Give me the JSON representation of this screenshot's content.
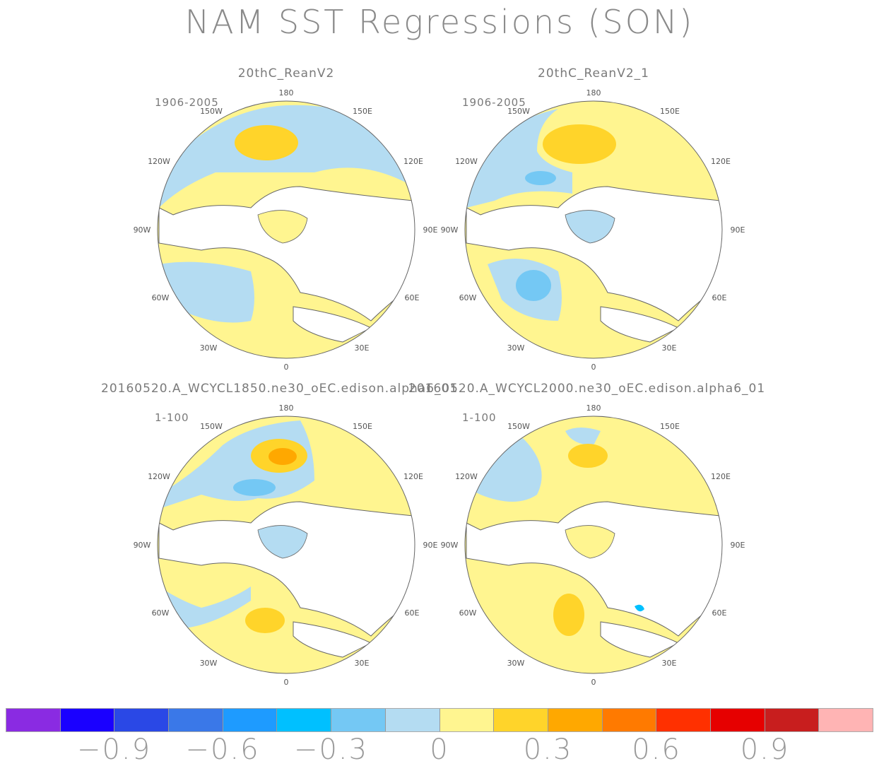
{
  "title": "NAM SST Regressions (SON)",
  "panels": [
    {
      "title": "20thC_ReanV2",
      "period": "1906-2005"
    },
    {
      "title": "20thC_ReanV2_1",
      "period": "1906-2005"
    },
    {
      "title": "20160520.A_WCYCL1850.ne30_oEC.edison.alpha6_01",
      "period": "1-100"
    },
    {
      "title": "20160520.A_WCYCL2000.ne30_oEC.edison.alpha6_01",
      "period": "1-100"
    }
  ],
  "longitude_labels": {
    "top": "180",
    "top_left": "150W",
    "top_right": "150E",
    "upper_left": "120W",
    "upper_right": "120E",
    "left": "90W",
    "right": "90E",
    "lower_left": "60W",
    "lower_right": "60E",
    "bottom_left": "30W",
    "bottom_right": "30E",
    "bottom": "0"
  },
  "colorbar": {
    "colors": [
      "#8a2be2",
      "#1a00ff",
      "#2a48e6",
      "#3a78e8",
      "#1e9bff",
      "#00c0ff",
      "#74c8f4",
      "#b4dcf2",
      "#fff590",
      "#ffd42a",
      "#ffa800",
      "#ff7a00",
      "#ff3000",
      "#e60000",
      "#c81e1e",
      "#ffb4b4"
    ],
    "labels": [
      "−0.9",
      "−0.6",
      "−0.3",
      "0",
      "0.3",
      "0.6",
      "0.9"
    ]
  }
}
